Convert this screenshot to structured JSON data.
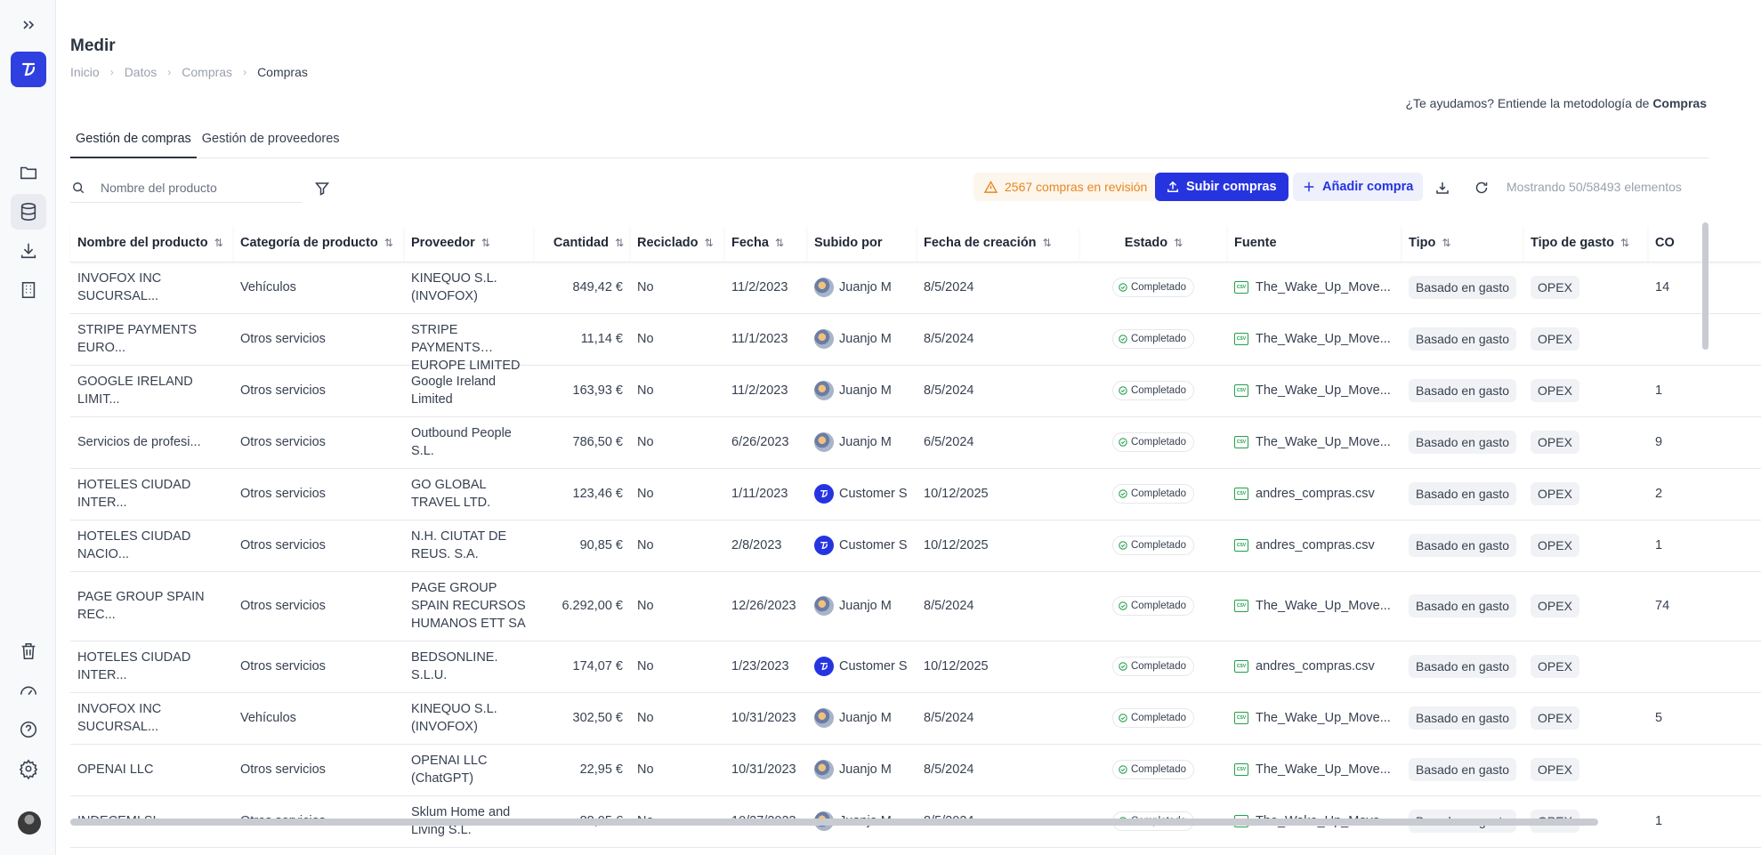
{
  "app": {
    "title": "Medir",
    "breadcrumb": [
      "Inicio",
      "Datos",
      "Compras",
      "Compras"
    ]
  },
  "sidebar": {
    "items": [
      {
        "name": "expand-icon"
      },
      {
        "name": "folder-icon"
      },
      {
        "name": "database-icon"
      },
      {
        "name": "download-icon"
      },
      {
        "name": "building-icon"
      },
      {
        "name": "trash-icon"
      },
      {
        "name": "gauge-icon"
      },
      {
        "name": "help-icon"
      },
      {
        "name": "gear-icon"
      }
    ]
  },
  "help": {
    "text": "¿Te ayudamos? Entiende la metodología de ",
    "bold": "Compras"
  },
  "tabs": [
    {
      "label": "Gestión de compras",
      "active": true
    },
    {
      "label": "Gestión de proveedores",
      "active": false
    }
  ],
  "toolbar": {
    "search_placeholder": "Nombre del producto",
    "review_label": "2567 compras en revisión",
    "upload_label": "Subir compras",
    "add_label": "Añadir compra",
    "count_label": "Mostrando 50/58493 elementos"
  },
  "colors": {
    "accent": "#2634e0",
    "warning": "#e98620",
    "csv": "#22a04b"
  },
  "table": {
    "headers": [
      "Nombre del producto",
      "Categoría de producto",
      "Proveedor",
      "Cantidad",
      "Reciclado",
      "Fecha",
      "Subido por",
      "Fecha de creación",
      "Estado",
      "Fuente",
      "Tipo",
      "Tipo de gasto",
      "CO"
    ],
    "rows": [
      {
        "product": "INVOFOX INC SUCURSAL...",
        "category": "Vehículos",
        "supplier": "KINEQUO S.L. (INVOFOX)",
        "amount": "849,42 €",
        "recycled": "No",
        "date": "11/2/2023",
        "user": "Juanjo M",
        "user_avatar": "photo",
        "created": "8/5/2024",
        "status": "Completado",
        "source": "The_Wake_Up_Move...",
        "type": "Basado en gasto",
        "spend": "OPEX",
        "co": "14"
      },
      {
        "product": "STRIPE PAYMENTS EURO...",
        "category": "Otros servicios",
        "supplier": "STRIPE PAYMENTS EUROPE LIMITED",
        "amount": "11,14 €",
        "recycled": "No",
        "date": "11/1/2023",
        "user": "Juanjo M",
        "user_avatar": "photo",
        "created": "8/5/2024",
        "status": "Completado",
        "source": "The_Wake_Up_Move...",
        "type": "Basado en gasto",
        "spend": "OPEX",
        "co": ""
      },
      {
        "product": "GOOGLE IRELAND LIMIT...",
        "category": "Otros servicios",
        "supplier": "Google Ireland Limited",
        "amount": "163,93 €",
        "recycled": "No",
        "date": "11/2/2023",
        "user": "Juanjo M",
        "user_avatar": "photo",
        "created": "8/5/2024",
        "status": "Completado",
        "source": "The_Wake_Up_Move...",
        "type": "Basado en gasto",
        "spend": "OPEX",
        "co": "1"
      },
      {
        "product": "Servicios de profesi...",
        "category": "Otros servicios",
        "supplier": "Outbound People S.L.",
        "amount": "786,50 €",
        "recycled": "No",
        "date": "6/26/2023",
        "user": "Juanjo M",
        "user_avatar": "photo",
        "created": "6/5/2024",
        "status": "Completado",
        "source": "The_Wake_Up_Move...",
        "type": "Basado en gasto",
        "spend": "OPEX",
        "co": "9"
      },
      {
        "product": "HOTELES CIUDAD INTER...",
        "category": "Otros servicios",
        "supplier": "GO GLOBAL TRAVEL LTD.",
        "amount": "123,46 €",
        "recycled": "No",
        "date": "1/11/2023",
        "user": "Customer S",
        "user_avatar": "logo",
        "created": "10/12/2025",
        "status": "Completado",
        "source": "andres_compras.csv",
        "type": "Basado en gasto",
        "spend": "OPEX",
        "co": "2"
      },
      {
        "product": "HOTELES CIUDAD NACIO...",
        "category": "Otros servicios",
        "supplier": "N.H. CIUTAT DE REUS. S.A.",
        "amount": "90,85 €",
        "recycled": "No",
        "date": "2/8/2023",
        "user": "Customer S",
        "user_avatar": "logo",
        "created": "10/12/2025",
        "status": "Completado",
        "source": "andres_compras.csv",
        "type": "Basado en gasto",
        "spend": "OPEX",
        "co": "1"
      },
      {
        "product": "PAGE GROUP SPAIN REC...",
        "category": "Otros servicios",
        "supplier": "PAGE GROUP SPAIN RECURSOS HUMANOS ETT SA",
        "amount": "6.292,00 €",
        "recycled": "No",
        "date": "12/26/2023",
        "user": "Juanjo M",
        "user_avatar": "photo",
        "created": "8/5/2024",
        "status": "Completado",
        "source": "The_Wake_Up_Move...",
        "type": "Basado en gasto",
        "spend": "OPEX",
        "co": "74"
      },
      {
        "product": "HOTELES CIUDAD INTER...",
        "category": "Otros servicios",
        "supplier": "BEDSONLINE. S.L.U.",
        "amount": "174,07 €",
        "recycled": "No",
        "date": "1/23/2023",
        "user": "Customer S",
        "user_avatar": "logo",
        "created": "10/12/2025",
        "status": "Completado",
        "source": "andres_compras.csv",
        "type": "Basado en gasto",
        "spend": "OPEX",
        "co": ""
      },
      {
        "product": "INVOFOX INC SUCURSAL...",
        "category": "Vehículos",
        "supplier": "KINEQUO S.L. (INVOFOX)",
        "amount": "302,50 €",
        "recycled": "No",
        "date": "10/31/2023",
        "user": "Juanjo M",
        "user_avatar": "photo",
        "created": "8/5/2024",
        "status": "Completado",
        "source": "The_Wake_Up_Move...",
        "type": "Basado en gasto",
        "spend": "OPEX",
        "co": "5"
      },
      {
        "product": "OPENAI LLC",
        "category": "Otros servicios",
        "supplier": "OPENAI LLC (ChatGPT)",
        "amount": "22,95 €",
        "recycled": "No",
        "date": "10/31/2023",
        "user": "Juanjo M",
        "user_avatar": "photo",
        "created": "8/5/2024",
        "status": "Completado",
        "source": "The_Wake_Up_Move...",
        "type": "Basado en gasto",
        "spend": "OPEX",
        "co": ""
      },
      {
        "product": "INDECEMI SL",
        "category": "Otros servicios",
        "supplier": "Sklum Home and Living S.L.",
        "amount": "88,05 €",
        "recycled": "No",
        "date": "10/27/2023",
        "user": "Juanjo M",
        "user_avatar": "photo",
        "created": "8/5/2024",
        "status": "Completado",
        "source": "The_Wake_Up_Move...",
        "type": "Basado en gasto",
        "spend": "OPEX",
        "co": "1"
      }
    ]
  }
}
